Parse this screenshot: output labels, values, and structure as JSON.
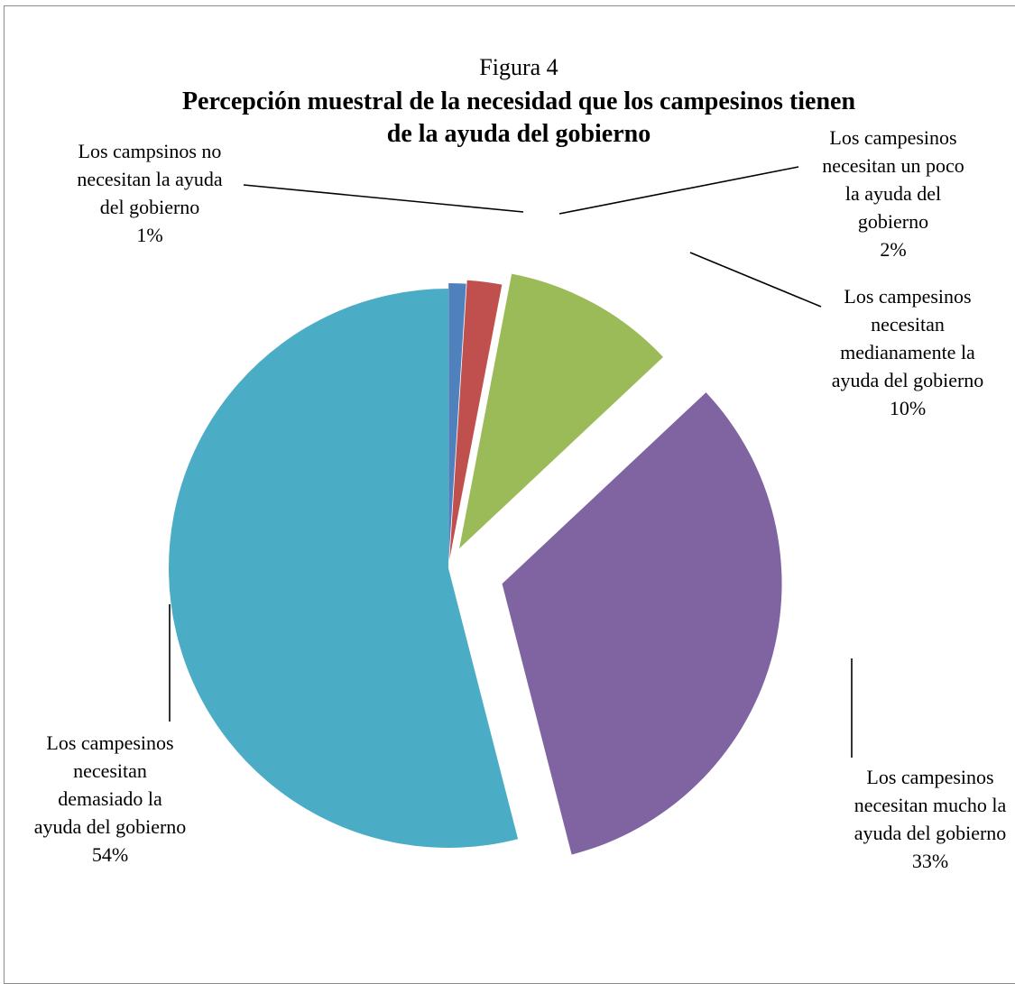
{
  "chart_data": {
    "type": "pie",
    "figure_label": "Figura 4",
    "title_lines": [
      "Percepción muestral de la necesidad que los campesinos tienen",
      "de la ayuda del gobierno"
    ],
    "exploded": true,
    "slices": [
      {
        "label_lines": [
          "Los campsinos no",
          "necesitan la ayuda",
          "del gobierno",
          "1%"
        ],
        "value": 1,
        "color": "#4f81bd"
      },
      {
        "label_lines": [
          "Los campesinos",
          "necesitan un poco",
          "la ayuda del",
          "gobierno",
          "2%"
        ],
        "value": 2,
        "color": "#c0504d"
      },
      {
        "label_lines": [
          "Los campesinos",
          "necesitan",
          "medianamente la",
          "ayuda del gobierno",
          "10%"
        ],
        "value": 10,
        "color": "#9bbb59"
      },
      {
        "label_lines": [
          "Los campesinos",
          "necesitan mucho la",
          "ayuda del gobierno",
          "33%"
        ],
        "value": 33,
        "color": "#8064a2"
      },
      {
        "label_lines": [
          "Los campesinos",
          "necesitan",
          "demasiado la",
          "ayuda del gobierno",
          "54%"
        ],
        "value": 54,
        "color": "#4bacc6"
      }
    ]
  }
}
